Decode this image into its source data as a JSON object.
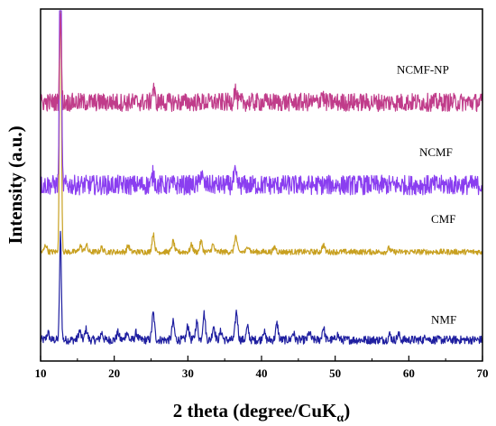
{
  "chart_data": {
    "type": "line",
    "title": "",
    "xlabel": "2 theta (degree/CuK",
    "xlabel_subscript": "α",
    "xlabel_suffix": ")",
    "ylabel": "Intensity (a.u.)",
    "xlim": [
      10,
      70
    ],
    "xticks": [
      10,
      20,
      30,
      40,
      50,
      60,
      70
    ],
    "xtick_labels": [
      "10",
      "20",
      "30",
      "40",
      "50",
      "60",
      "70"
    ],
    "y_ticks_shown": false,
    "grid": false,
    "legend": "none (inline labels at right)",
    "series": [
      {
        "name": "NMF",
        "color": "#1f1fa0",
        "baseline": 0.06,
        "noise": 0.012,
        "peaks": [
          [
            11.0,
            0.02
          ],
          [
            12.7,
            0.3
          ],
          [
            15.3,
            0.025
          ],
          [
            16.2,
            0.03
          ],
          [
            18.3,
            0.02
          ],
          [
            20.5,
            0.02
          ],
          [
            21.7,
            0.022
          ],
          [
            23.0,
            0.02
          ],
          [
            25.3,
            0.075
          ],
          [
            28.0,
            0.05
          ],
          [
            30.0,
            0.04
          ],
          [
            31.2,
            0.05
          ],
          [
            32.2,
            0.075
          ],
          [
            33.5,
            0.04
          ],
          [
            34.5,
            0.025
          ],
          [
            36.6,
            0.08
          ],
          [
            38.1,
            0.035
          ],
          [
            40.3,
            0.025
          ],
          [
            42.1,
            0.045
          ],
          [
            44.3,
            0.02
          ],
          [
            46.5,
            0.02
          ],
          [
            48.4,
            0.035
          ],
          [
            50.3,
            0.015
          ],
          [
            57.4,
            0.015
          ],
          [
            58.6,
            0.015
          ],
          [
            62.4,
            0.012
          ]
        ]
      },
      {
        "name": "CMF",
        "color": "#c8a020",
        "baseline": 0.31,
        "noise": 0.008,
        "peaks": [
          [
            10.7,
            0.02
          ],
          [
            12.7,
            0.9
          ],
          [
            15.4,
            0.018
          ],
          [
            16.2,
            0.02
          ],
          [
            18.3,
            0.012
          ],
          [
            21.9,
            0.018
          ],
          [
            25.3,
            0.05
          ],
          [
            28.0,
            0.03
          ],
          [
            30.5,
            0.02
          ],
          [
            31.8,
            0.03
          ],
          [
            33.4,
            0.02
          ],
          [
            36.5,
            0.045
          ],
          [
            38.2,
            0.018
          ],
          [
            41.8,
            0.014
          ],
          [
            48.4,
            0.02
          ],
          [
            57.3,
            0.01
          ]
        ]
      },
      {
        "name": "NCMF",
        "color": "#8a3ef0",
        "baseline": 0.5,
        "noise": 0.028,
        "peaks": [
          [
            12.7,
            0.9
          ],
          [
            25.3,
            0.03
          ],
          [
            31.8,
            0.035
          ],
          [
            36.4,
            0.03
          ]
        ]
      },
      {
        "name": "NCMF-NP",
        "color": "#c03c8a",
        "baseline": 0.735,
        "noise": 0.026,
        "peaks": [
          [
            12.7,
            0.25
          ],
          [
            25.3,
            0.04
          ],
          [
            36.4,
            0.035
          ],
          [
            48.2,
            0.025
          ]
        ]
      }
    ]
  }
}
